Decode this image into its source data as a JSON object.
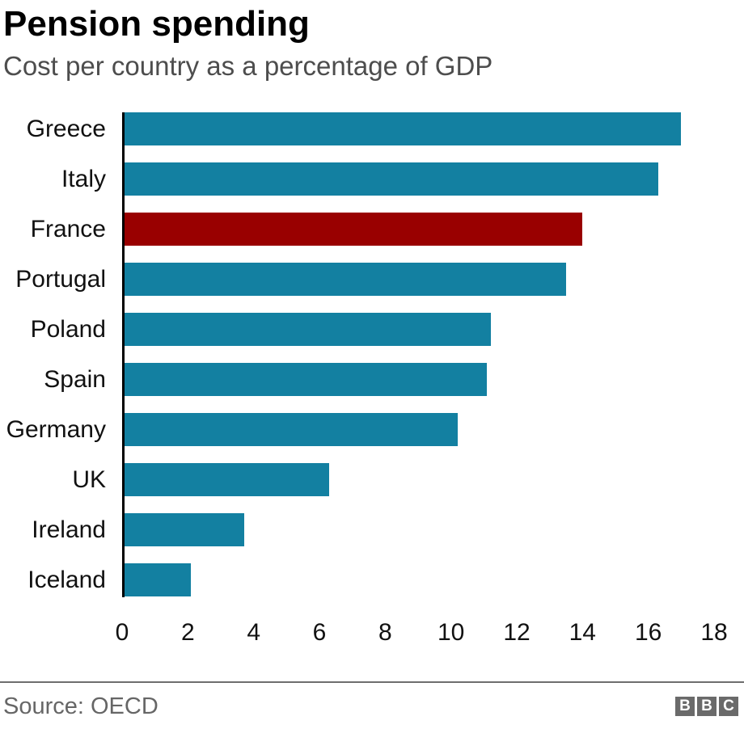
{
  "title": "Pension spending",
  "subtitle": "Cost per country as a percentage of GDP",
  "source": "Source: OECD",
  "logo": {
    "letters": [
      "B",
      "B",
      "C"
    ]
  },
  "colors": {
    "bar": "#1380A1",
    "highlight_bar": "#990000",
    "axis_line": "#000000",
    "title_text": "#000000",
    "subtitle_text": "#4d4d4d",
    "tick_text": "#111111",
    "source_text": "#666666",
    "divider": "#6e6e6e",
    "logo_bg": "#6a6a6a"
  },
  "chart_data": {
    "type": "bar",
    "orientation": "horizontal",
    "title": "Pension spending",
    "subtitle": "Cost per country as a percentage of GDP",
    "categories": [
      "Greece",
      "Italy",
      "France",
      "Portugal",
      "Poland",
      "Spain",
      "Germany",
      "UK",
      "Ireland",
      "Iceland"
    ],
    "values": [
      17.0,
      16.3,
      14.0,
      13.5,
      11.2,
      11.1,
      10.2,
      6.3,
      3.7,
      2.1
    ],
    "highlight_category": "France",
    "xlabel": "",
    "ylabel": "",
    "xlim": [
      0,
      18
    ],
    "x_ticks": [
      0,
      2,
      4,
      6,
      8,
      10,
      12,
      14,
      16,
      18
    ],
    "grid": false,
    "legend": false,
    "source": "Source: OECD"
  }
}
